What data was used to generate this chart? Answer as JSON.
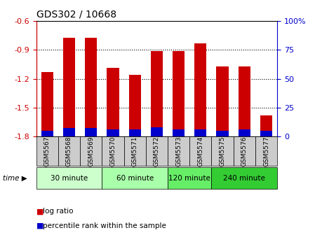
{
  "title": "GDS302 / 10668",
  "samples": [
    "GSM5567",
    "GSM5568",
    "GSM5569",
    "GSM5570",
    "GSM5571",
    "GSM5572",
    "GSM5573",
    "GSM5574",
    "GSM5575",
    "GSM5576",
    "GSM5577"
  ],
  "log_ratios": [
    -1.13,
    -0.77,
    -0.77,
    -1.09,
    -1.16,
    -0.91,
    -0.91,
    -0.83,
    -1.07,
    -1.07,
    -1.58
  ],
  "percentile_ranks": [
    5,
    7,
    7,
    6,
    6,
    8,
    6,
    6,
    5,
    6,
    5
  ],
  "y_min": -1.8,
  "y_max": -0.6,
  "y_ticks": [
    -1.8,
    -1.5,
    -1.2,
    -0.9,
    -0.6
  ],
  "right_y_ticks": [
    0,
    25,
    50,
    75,
    100
  ],
  "right_y_labels": [
    "0",
    "25",
    "50",
    "75",
    "100%"
  ],
  "groups": [
    {
      "label": "30 minute",
      "start": 0,
      "end": 2,
      "color": "#ccffcc"
    },
    {
      "label": "60 minute",
      "start": 3,
      "end": 5,
      "color": "#aaffaa"
    },
    {
      "label": "120 minute",
      "start": 6,
      "end": 7,
      "color": "#66ee66"
    },
    {
      "label": "240 minute",
      "start": 8,
      "end": 10,
      "color": "#33cc33"
    }
  ],
  "bar_color": "#cc0000",
  "percentile_color": "#0000cc",
  "background_color": "#ffffff",
  "tick_label_color": "#cc0000",
  "right_axis_color": "#0000cc",
  "grid_color": "#000000",
  "xtick_bg_color": "#cccccc",
  "title_fontsize": 10,
  "bar_width": 0.55
}
